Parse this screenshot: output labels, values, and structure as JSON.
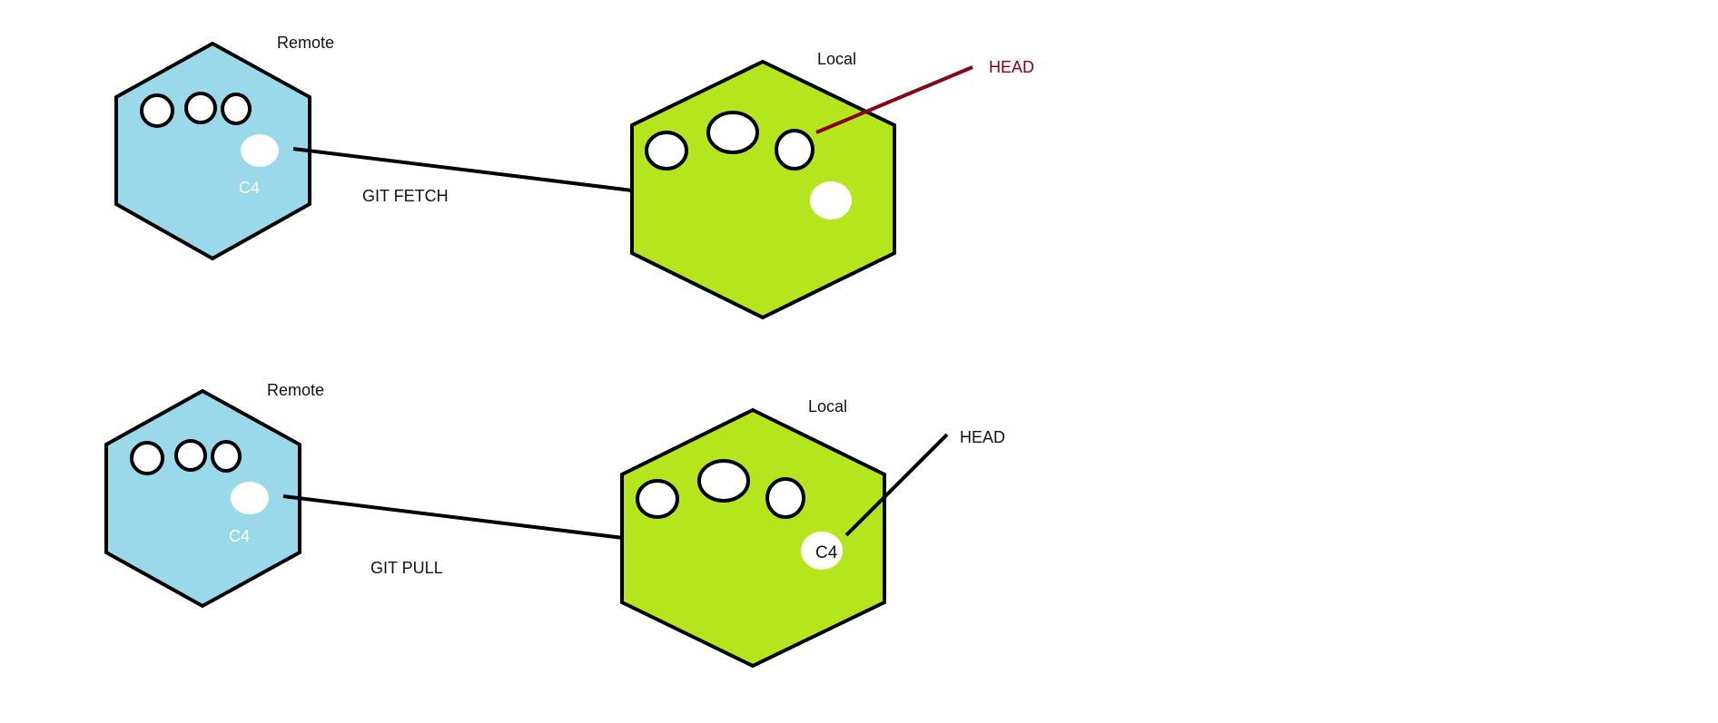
{
  "colors": {
    "remote_fill": "#9ad9ea",
    "local_fill": "#b5e61d",
    "outline": "#000000",
    "commit_fill": "#ffffff",
    "fetch_head_line": "#880015",
    "pull_head_line": "#000000"
  },
  "fetch_scene": {
    "remote_label": "Remote",
    "remote_commit_label": "C4",
    "local_label": "Local",
    "operation_label": "GIT FETCH",
    "head_label": "HEAD"
  },
  "pull_scene": {
    "remote_label": "Remote",
    "remote_commit_label": "C4",
    "local_label": "Local",
    "local_commit_label": "C4",
    "operation_label": "GIT PULL",
    "head_label": "HEAD"
  }
}
